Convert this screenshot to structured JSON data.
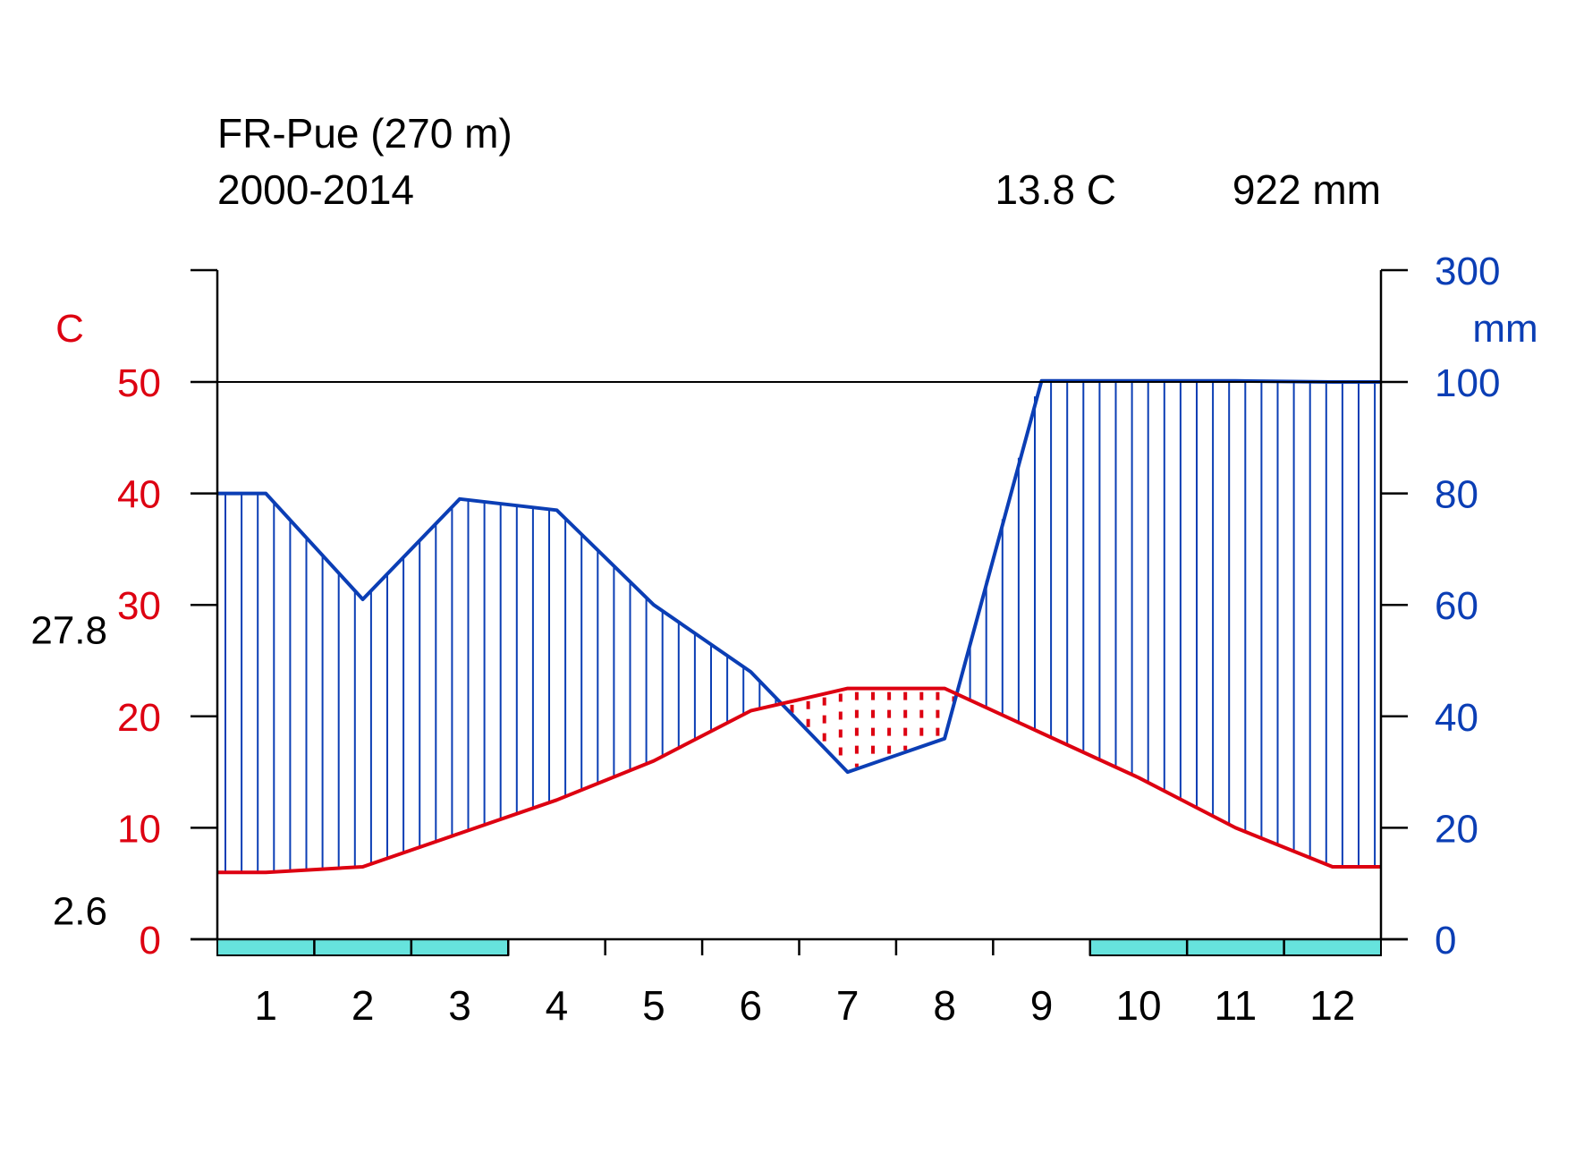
{
  "chart_data": {
    "type": "line",
    "title": "FR-Pue (270 m)",
    "subtitle": "2000-2014",
    "mean_temp_label": "13.8 C",
    "annual_precip_label": "922 mm",
    "left_unit": "C",
    "right_unit": "mm",
    "left_ticks": [
      "0",
      "10",
      "20",
      "30",
      "40",
      "50"
    ],
    "right_ticks": [
      "0",
      "20",
      "40",
      "60",
      "80",
      "100",
      "300"
    ],
    "left_extra_labels": [
      "27.8",
      "2.6"
    ],
    "left_extra_values": [
      27.8,
      2.6
    ],
    "categories": [
      "1",
      "2",
      "3",
      "4",
      "5",
      "6",
      "7",
      "8",
      "9",
      "10",
      "11",
      "12"
    ],
    "temperature": [
      6.0,
      6.5,
      9.5,
      12.5,
      16.0,
      20.5,
      22.5,
      22.5,
      18.5,
      14.5,
      10.0,
      6.5
    ],
    "precipitation": [
      80,
      61,
      79,
      77,
      60,
      48,
      30,
      36,
      102,
      102,
      102,
      100
    ],
    "frost_months": [
      1,
      2,
      3,
      10,
      11,
      12
    ],
    "colors": {
      "temperature": "#dd0011",
      "precipitation": "#0b3eb5",
      "frost": "#66e3dd",
      "axis": "#000000"
    }
  }
}
